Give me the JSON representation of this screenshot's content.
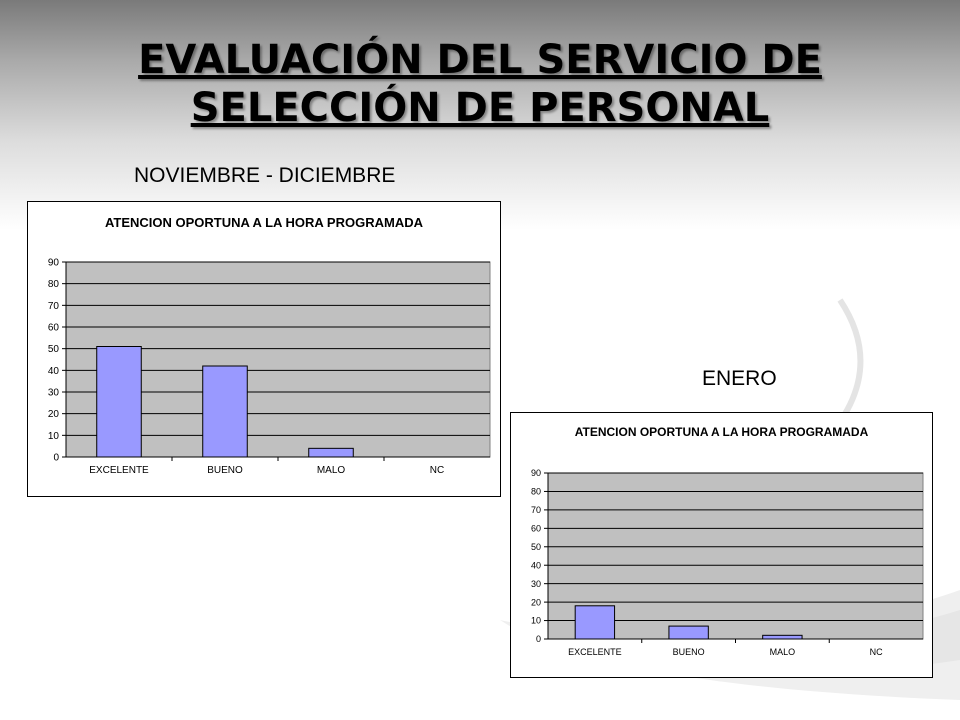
{
  "slide": {
    "title_line1": "EVALUACIÓN DEL SERVICIO DE",
    "title_line2": "SELECCIÓN DE PERSONAL"
  },
  "colors": {
    "bar": "#9999ff",
    "plot_area": "#c0c0c0",
    "gridline": "#000000"
  },
  "chart_data": [
    {
      "type": "bar",
      "period": "NOVIEMBRE - DICIEMBRE",
      "title": "ATENCION OPORTUNA A LA HORA PROGRAMADA",
      "categories": [
        "EXCELENTE",
        "BUENO",
        "MALO",
        "NC"
      ],
      "values": [
        51,
        42,
        4,
        0
      ],
      "ylim": [
        0,
        90
      ],
      "yticks": [
        0,
        10,
        20,
        30,
        40,
        50,
        60,
        70,
        80,
        90
      ],
      "xlabel": "",
      "ylabel": "",
      "grid": true,
      "legend": "none"
    },
    {
      "type": "bar",
      "period": "ENERO",
      "title": "ATENCION OPORTUNA A LA HORA PROGRAMADA",
      "categories": [
        "EXCELENTE",
        "BUENO",
        "MALO",
        "NC"
      ],
      "values": [
        18,
        7,
        2,
        0
      ],
      "ylim": [
        0,
        90
      ],
      "yticks": [
        0,
        10,
        20,
        30,
        40,
        50,
        60,
        70,
        80,
        90
      ],
      "xlabel": "",
      "ylabel": "",
      "grid": true,
      "legend": "none"
    }
  ]
}
